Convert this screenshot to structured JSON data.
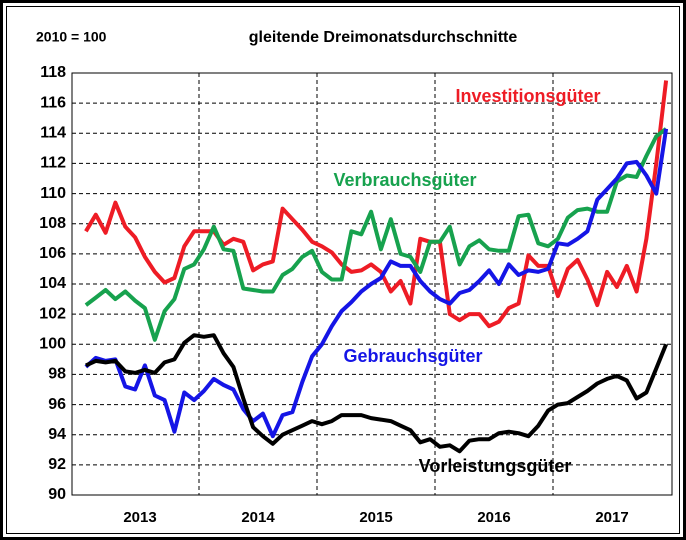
{
  "chart_data": {
    "type": "line",
    "unit_label": "2010 = 100",
    "title": "gleitende Dreimonatsdurchschnitte",
    "year_labels": [
      "2013",
      "2014",
      "2015",
      "2016",
      "2017"
    ],
    "ylim": [
      90,
      118
    ],
    "yticks": [
      90,
      92,
      94,
      96,
      98,
      100,
      102,
      104,
      106,
      108,
      110,
      112,
      114,
      116,
      118
    ],
    "grid": true,
    "series": [
      {
        "name": "Investitionsgüter",
        "color": "#ee1c25",
        "values": [
          107.5,
          108.6,
          107.4,
          109.4,
          107.8,
          107.1,
          105.8,
          104.8,
          104.1,
          104.4,
          106.5,
          107.5,
          107.5,
          107.5,
          106.6,
          107.0,
          106.8,
          104.9,
          105.3,
          105.5,
          109.0,
          108.3,
          107.6,
          106.8,
          106.5,
          106.1,
          105.3,
          104.8,
          104.9,
          105.3,
          104.8,
          103.5,
          104.2,
          102.7,
          107.0,
          106.8,
          106.8,
          102.0,
          101.6,
          102.0,
          102.0,
          101.2,
          101.5,
          102.4,
          102.7,
          105.9,
          105.2,
          105.2,
          103.2,
          105.0,
          105.6,
          104.3,
          102.6,
          104.8,
          103.8,
          105.2,
          103.5,
          107.0,
          112.0,
          117.5
        ]
      },
      {
        "name": "Verbrauchsgüter",
        "color": "#17a24e",
        "values": [
          102.6,
          103.1,
          103.6,
          103.0,
          103.5,
          102.9,
          102.4,
          100.3,
          102.2,
          103.0,
          105.0,
          105.3,
          106.3,
          107.8,
          106.3,
          106.2,
          103.7,
          103.6,
          103.5,
          103.5,
          104.6,
          105.0,
          105.8,
          106.2,
          104.8,
          104.3,
          104.3,
          107.5,
          107.3,
          108.8,
          106.3,
          108.3,
          106.0,
          105.8,
          104.8,
          106.8,
          106.8,
          107.8,
          105.3,
          106.5,
          106.9,
          106.3,
          106.2,
          106.2,
          108.5,
          108.6,
          106.7,
          106.5,
          107.0,
          108.4,
          108.9,
          109.0,
          108.8,
          108.8,
          110.8,
          111.2,
          111.1,
          112.5,
          113.8,
          114.3
        ]
      },
      {
        "name": "Gebrauchsgüter",
        "color": "#1515e6",
        "values": [
          98.5,
          99.1,
          98.9,
          99.0,
          97.2,
          97.0,
          98.6,
          96.6,
          96.3,
          94.2,
          96.8,
          96.3,
          96.9,
          97.7,
          97.3,
          97.0,
          95.7,
          94.9,
          95.4,
          93.9,
          95.3,
          95.5,
          97.5,
          99.2,
          100.0,
          101.2,
          102.2,
          102.8,
          103.5,
          104.0,
          104.4,
          105.5,
          105.2,
          105.2,
          104.2,
          103.5,
          103.0,
          102.7,
          103.4,
          103.6,
          104.2,
          104.9,
          104.0,
          105.3,
          104.6,
          104.9,
          104.8,
          105.0,
          106.7,
          106.6,
          107.0,
          107.5,
          109.6,
          110.3,
          111.0,
          112.0,
          112.1,
          111.2,
          110.0,
          114.3
        ]
      },
      {
        "name": "Vorleistungsgüter",
        "color": "#000000",
        "values": [
          98.6,
          98.9,
          98.8,
          98.9,
          98.2,
          98.1,
          98.3,
          98.1,
          98.8,
          99.0,
          100.1,
          100.6,
          100.5,
          100.6,
          99.4,
          98.5,
          96.4,
          94.5,
          93.9,
          93.4,
          94.0,
          94.3,
          94.6,
          94.9,
          94.7,
          94.9,
          95.3,
          95.3,
          95.3,
          95.1,
          95.0,
          94.9,
          94.6,
          94.3,
          93.5,
          93.7,
          93.2,
          93.3,
          92.9,
          93.6,
          93.7,
          93.7,
          94.1,
          94.2,
          94.1,
          93.9,
          94.6,
          95.6,
          96.0,
          96.1,
          96.5,
          96.9,
          97.4,
          97.7,
          97.9,
          97.6,
          96.4,
          96.8,
          98.4,
          100.0
        ]
      }
    ]
  }
}
